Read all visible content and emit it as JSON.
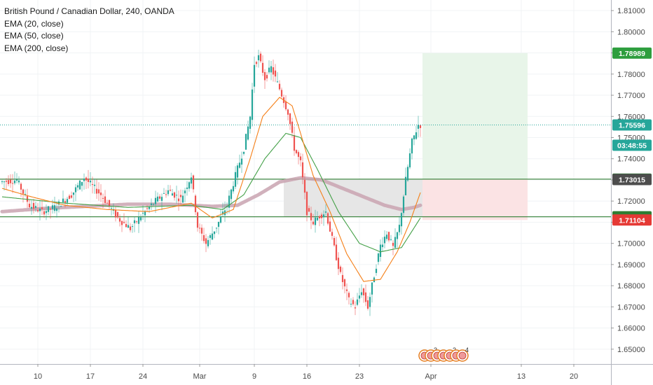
{
  "legend": {
    "title": "British Pound / Canadian Dollar, 240, OANDA",
    "indicators": [
      "EMA (20, close)",
      "EMA (50, close)",
      "EMA (200, close)"
    ]
  },
  "colors": {
    "up": "#26a69a",
    "down": "#ef5350",
    "ema20": "#f57f17",
    "ema50": "#43a047",
    "ema200": "#c9a3b0",
    "hline": "#2e7d32",
    "target_zone": "#e8f5e9",
    "stop_zone": "#fbe3e4",
    "gray_zone": "#e6e6e6",
    "price_line": "#26a69a"
  },
  "chart_data": {
    "type": "candlestick",
    "symbol": "GBPCAD",
    "interval": "240",
    "source": "OANDA",
    "ylim": [
      1.643,
      1.815
    ],
    "y_ticks": [
      "1.65000",
      "1.66000",
      "1.67000",
      "1.68000",
      "1.69000",
      "1.70000",
      "1.71000",
      "1.72000",
      "1.73000",
      "1.74000",
      "1.75000",
      "1.76000",
      "1.77000",
      "1.78000",
      "1.79000",
      "1.80000",
      "1.81000"
    ],
    "x_ticks": [
      "10",
      "17",
      "24",
      "Mar",
      "9",
      "16",
      "23",
      "Apr",
      "13",
      "20"
    ],
    "x_ticks_idx": [
      17,
      42,
      67,
      94,
      120,
      145,
      170,
      204,
      247,
      272
    ],
    "price_path": [
      [
        0,
        1.729
      ],
      [
        8,
        1.73
      ],
      [
        14,
        1.718
      ],
      [
        20,
        1.715
      ],
      [
        26,
        1.717
      ],
      [
        34,
        1.723
      ],
      [
        40,
        1.731
      ],
      [
        48,
        1.723
      ],
      [
        56,
        1.712
      ],
      [
        62,
        1.707
      ],
      [
        68,
        1.714
      ],
      [
        74,
        1.72
      ],
      [
        80,
        1.725
      ],
      [
        86,
        1.721
      ],
      [
        91,
        1.732
      ],
      [
        94,
        1.708
      ],
      [
        98,
        1.7
      ],
      [
        103,
        1.708
      ],
      [
        108,
        1.718
      ],
      [
        112,
        1.732
      ],
      [
        116,
        1.745
      ],
      [
        119,
        1.76
      ],
      [
        121,
        1.785
      ],
      [
        123,
        1.788
      ],
      [
        126,
        1.778
      ],
      [
        129,
        1.783
      ],
      [
        133,
        1.773
      ],
      [
        137,
        1.762
      ],
      [
        140,
        1.745
      ],
      [
        143,
        1.738
      ],
      [
        146,
        1.715
      ],
      [
        149,
        1.71
      ],
      [
        152,
        1.713
      ],
      [
        155,
        1.715
      ],
      [
        158,
        1.702
      ],
      [
        162,
        1.685
      ],
      [
        166,
        1.673
      ],
      [
        169,
        1.67
      ],
      [
        172,
        1.678
      ],
      [
        175,
        1.67
      ],
      [
        178,
        1.685
      ],
      [
        181,
        1.699
      ],
      [
        184,
        1.705
      ],
      [
        187,
        1.698
      ],
      [
        190,
        1.708
      ],
      [
        193,
        1.73
      ],
      [
        196,
        1.748
      ],
      [
        199,
        1.756
      ]
    ],
    "ema20_path": [
      [
        0,
        1.726
      ],
      [
        14,
        1.722
      ],
      [
        30,
        1.718
      ],
      [
        50,
        1.716
      ],
      [
        70,
        1.715
      ],
      [
        90,
        1.719
      ],
      [
        100,
        1.712
      ],
      [
        110,
        1.716
      ],
      [
        118,
        1.74
      ],
      [
        124,
        1.76
      ],
      [
        132,
        1.769
      ],
      [
        138,
        1.765
      ],
      [
        142,
        1.752
      ],
      [
        148,
        1.732
      ],
      [
        156,
        1.715
      ],
      [
        164,
        1.695
      ],
      [
        172,
        1.682
      ],
      [
        180,
        1.683
      ],
      [
        188,
        1.696
      ],
      [
        194,
        1.71
      ],
      [
        199,
        1.724
      ]
    ],
    "ema50_path": [
      [
        0,
        1.722
      ],
      [
        30,
        1.719
      ],
      [
        60,
        1.717
      ],
      [
        90,
        1.718
      ],
      [
        105,
        1.716
      ],
      [
        115,
        1.723
      ],
      [
        125,
        1.74
      ],
      [
        135,
        1.752
      ],
      [
        142,
        1.75
      ],
      [
        150,
        1.735
      ],
      [
        160,
        1.715
      ],
      [
        170,
        1.7
      ],
      [
        180,
        1.696
      ],
      [
        190,
        1.698
      ],
      [
        199,
        1.712
      ]
    ],
    "ema200_path": [
      [
        0,
        1.715
      ],
      [
        20,
        1.7165
      ],
      [
        40,
        1.7175
      ],
      [
        60,
        1.7185
      ],
      [
        80,
        1.7185
      ],
      [
        100,
        1.7175
      ],
      [
        112,
        1.718
      ],
      [
        122,
        1.723
      ],
      [
        132,
        1.729
      ],
      [
        142,
        1.731
      ],
      [
        152,
        1.73
      ],
      [
        162,
        1.726
      ],
      [
        172,
        1.722
      ],
      [
        182,
        1.718
      ],
      [
        190,
        1.716
      ],
      [
        196,
        1.717
      ],
      [
        199,
        1.718
      ]
    ],
    "last_price": 1.75596,
    "price_tags": [
      {
        "label": "1.78989",
        "value": 1.78989,
        "color": "#2e9e3e"
      },
      {
        "label": "1.75596",
        "value": 1.75596,
        "color": "#26a69a"
      },
      {
        "label": "03:48:55",
        "value": 1.74635,
        "color": "#26a69a"
      },
      {
        "label": "1.73035",
        "value": 1.73035,
        "color": "#2e7d32"
      },
      {
        "label": "1.73015",
        "value": 1.73015,
        "color": "#4d4d4d"
      },
      {
        "label": "1.71257",
        "value": 1.71257,
        "color": "#2e7d32"
      },
      {
        "label": "1.71104",
        "value": 1.71104,
        "color": "#e53935"
      }
    ],
    "horizontal_lines": [
      1.73035,
      1.71257
    ],
    "target_zone": {
      "from_idx": 200,
      "to_idx": 250,
      "top": 1.78989,
      "bottom": 1.73035
    },
    "stop_zone": {
      "from_idx": 200,
      "to_idx": 250,
      "top": 1.73035,
      "bottom": 1.71104
    },
    "gray_zone": {
      "from_idx": 134,
      "to_idx": 200,
      "top": 1.73035,
      "bottom": 1.71257
    },
    "events": {
      "idx": [
        201,
        204,
        207,
        210,
        213,
        216,
        219
      ],
      "labels": [
        "",
        "3",
        "",
        "",
        "2",
        "",
        "4"
      ]
    }
  }
}
